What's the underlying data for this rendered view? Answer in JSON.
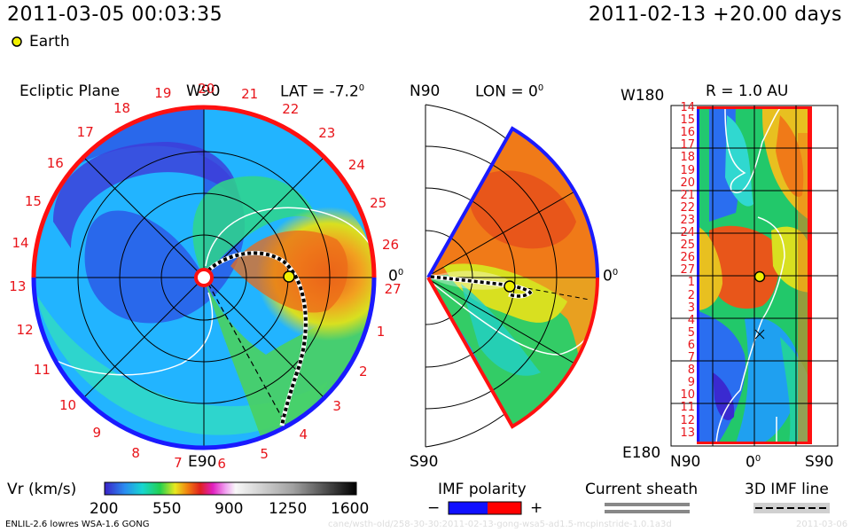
{
  "header": {
    "timestamp": "2011-03-05 00:03:35",
    "run_info": "2011-02-13 +20.00 days",
    "earth_legend": "Earth"
  },
  "panel_left": {
    "title": "Ecliptic Plane",
    "top_label": "W90",
    "bottom_label": "E90",
    "lat_label": "LAT = -7.2",
    "lat_sup": "0",
    "zero_label": "0",
    "zero_sup": "0",
    "carrington_numbers": [
      "19",
      "20",
      "21",
      "22",
      "23",
      "24",
      "25",
      "26",
      "27",
      "1",
      "2",
      "3",
      "4",
      "5",
      "6",
      "7",
      "8",
      "9",
      "10",
      "11",
      "12",
      "13",
      "14",
      "15",
      "16",
      "17",
      "18"
    ]
  },
  "panel_mid": {
    "top_label": "N90",
    "bottom_label": "S90",
    "lon_label": "LON = 0",
    "lon_sup": "0",
    "zero_label": "0",
    "zero_sup": "0"
  },
  "panel_right": {
    "r_label": "R = 1.0 AU",
    "top_left_label": "W180",
    "bottom_left_label": "E180",
    "x_labels": [
      "N90",
      "0",
      "S90"
    ],
    "x_sup": "0",
    "y_labels": [
      "14",
      "15",
      "16",
      "17",
      "18",
      "19",
      "20",
      "21",
      "22",
      "23",
      "24",
      "25",
      "26",
      "27",
      "1",
      "2",
      "3",
      "4",
      "5",
      "6",
      "7",
      "8",
      "9",
      "10",
      "11",
      "12",
      "13"
    ]
  },
  "colorbar": {
    "label": "Vr (km/s)",
    "ticks": [
      "200",
      "550",
      "900",
      "1250",
      "1600"
    ],
    "min": 200,
    "max": 1600
  },
  "legends": {
    "imf_polarity": "IMF polarity",
    "minus": "−",
    "plus": "+",
    "current_sheath": "Current sheath",
    "imf_line": "3D IMF line",
    "colors": {
      "negative": "#1010ff",
      "positive": "#ff0000"
    }
  },
  "footer": {
    "model": "ENLIL-2.6 lowres WSA-1.6 GONG",
    "watermark_path": "cane/wsth-old/258-30-30:2011-02-13-gong-wsa5-ad1.5-mcpinstride-1.0.1a3d",
    "watermark_date": "2011-03-06"
  },
  "chart_data": {
    "type": "heatmap",
    "quantity": "Vr (km/s)",
    "value_range": [
      200,
      1600
    ],
    "panels": [
      "Ecliptic Plane",
      "LON = 0",
      "R = 1.0 AU"
    ],
    "earth": {
      "lat_deg": -7.2,
      "lon_deg": 0,
      "r_au": 1.0
    }
  }
}
